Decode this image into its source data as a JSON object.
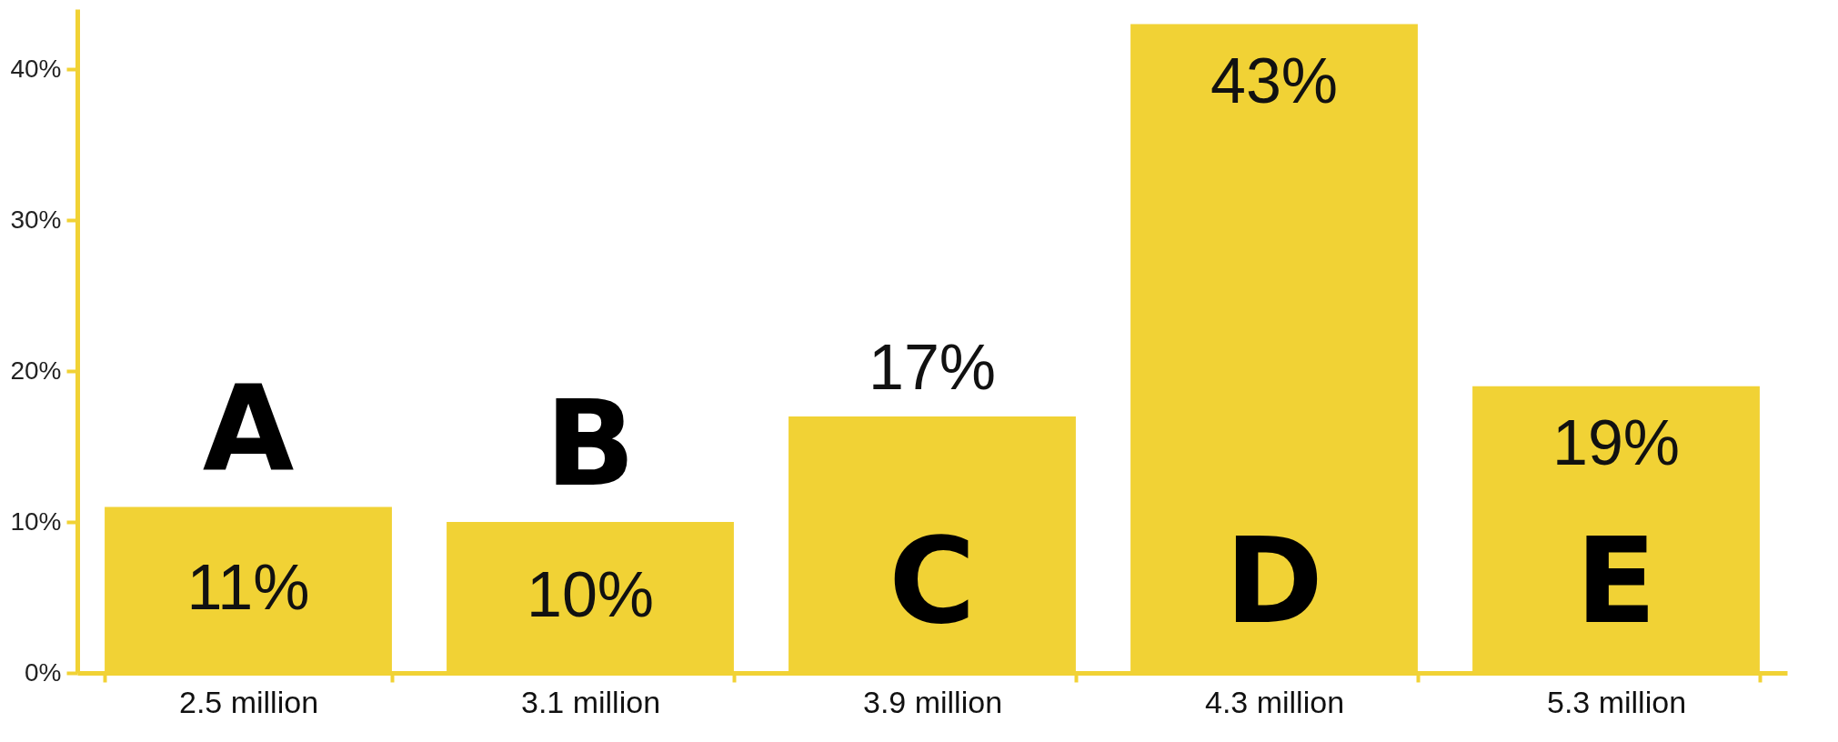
{
  "chart_data": {
    "type": "bar",
    "categories": [
      "2.5 million",
      "3.1 million",
      "3.9 million",
      "4.3 million",
      "5.3 million"
    ],
    "values": [
      11,
      10,
      17,
      43,
      19
    ],
    "color": "#f1d235",
    "value_labels": [
      "11%",
      "10%",
      "17%",
      "43%",
      "19%"
    ],
    "ylim": [
      0,
      44
    ],
    "yticks": [
      {
        "value": 0,
        "label": "0%"
      },
      {
        "value": 10,
        "label": "10%"
      },
      {
        "value": 20,
        "label": "20%"
      },
      {
        "value": 30,
        "label": "30%"
      },
      {
        "value": 40,
        "label": "40%"
      }
    ],
    "grid": false,
    "annotations": [
      "A",
      "B",
      "C",
      "D",
      "E"
    ]
  }
}
